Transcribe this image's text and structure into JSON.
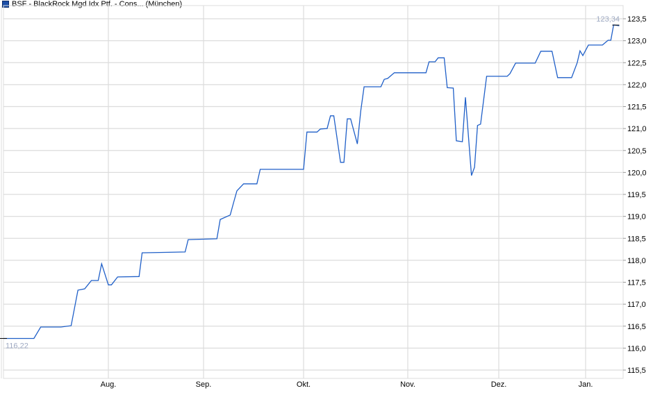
{
  "chart_data": {
    "type": "line",
    "title": "BSF - BlackRock Mgd Idx Ptf. - Cons... (München)",
    "legend_color": "#1c4fa8",
    "line_color": "#1f5fc8",
    "grid": true,
    "ylim": [
      115.5,
      123.5
    ],
    "y_ticks": [
      "115,5",
      "116,0",
      "116,5",
      "117,0",
      "117,5",
      "118,0",
      "118,5",
      "119,0",
      "119,5",
      "120,0",
      "120,5",
      "121,0",
      "121,5",
      "122,0",
      "122,5",
      "123,0",
      "123,5"
    ],
    "x_ticks": [
      "Aug.",
      "Sep.",
      "Okt.",
      "Nov.",
      "Dez.",
      "Jan."
    ],
    "start_label": "116,22",
    "end_label": "123,34",
    "points": [
      [
        "07-01",
        116.22
      ],
      [
        "07-10",
        116.22
      ],
      [
        "07-12",
        116.48
      ],
      [
        "07-18",
        116.48
      ],
      [
        "07-21",
        116.51
      ],
      [
        "07-23",
        117.32
      ],
      [
        "07-25",
        117.35
      ],
      [
        "07-27",
        117.54
      ],
      [
        "07-29",
        117.54
      ],
      [
        "07-30",
        117.92
      ],
      [
        "08-01",
        117.44
      ],
      [
        "08-02",
        117.44
      ],
      [
        "08-04",
        117.62
      ],
      [
        "08-11",
        117.63
      ],
      [
        "08-12",
        118.17
      ],
      [
        "08-26",
        118.19
      ],
      [
        "08-27",
        118.47
      ],
      [
        "09-05",
        118.49
      ],
      [
        "09-06",
        118.93
      ],
      [
        "09-09",
        119.03
      ],
      [
        "09-10",
        119.31
      ],
      [
        "09-11",
        119.58
      ],
      [
        "09-13",
        119.74
      ],
      [
        "09-17",
        119.74
      ],
      [
        "09-18",
        120.07
      ],
      [
        "10-01",
        120.07
      ],
      [
        "10-02",
        120.92
      ],
      [
        "10-05",
        120.92
      ],
      [
        "10-06",
        120.99
      ],
      [
        "10-08",
        121.0
      ],
      [
        "10-09",
        121.29
      ],
      [
        "10-10",
        121.29
      ],
      [
        "10-12",
        120.23
      ],
      [
        "10-13",
        120.23
      ],
      [
        "10-14",
        121.22
      ],
      [
        "10-15",
        121.22
      ],
      [
        "10-17",
        120.65
      ],
      [
        "10-18",
        121.4
      ],
      [
        "10-19",
        121.95
      ],
      [
        "10-24",
        121.95
      ],
      [
        "10-25",
        122.12
      ],
      [
        "10-26",
        122.14
      ],
      [
        "10-28",
        122.27
      ],
      [
        "11-07",
        122.27
      ],
      [
        "11-08",
        122.52
      ],
      [
        "11-10",
        122.52
      ],
      [
        "11-11",
        122.61
      ],
      [
        "11-13",
        122.61
      ],
      [
        "11-14",
        121.93
      ],
      [
        "11-16",
        121.92
      ],
      [
        "11-17",
        120.72
      ],
      [
        "11-19",
        120.7
      ],
      [
        "11-20",
        121.71
      ],
      [
        "11-22",
        119.93
      ],
      [
        "11-23",
        120.12
      ],
      [
        "11-24",
        121.07
      ],
      [
        "11-25",
        121.1
      ],
      [
        "11-27",
        122.19
      ],
      [
        "12-04",
        122.19
      ],
      [
        "12-05",
        122.25
      ],
      [
        "12-07",
        122.49
      ],
      [
        "12-14",
        122.49
      ],
      [
        "12-16",
        122.76
      ],
      [
        "12-20",
        122.76
      ],
      [
        "12-22",
        122.16
      ],
      [
        "12-27",
        122.16
      ],
      [
        "12-29",
        122.5
      ],
      [
        "12-30",
        122.77
      ],
      [
        "12-31",
        122.66
      ],
      [
        "01-02",
        122.9
      ],
      [
        "01-07",
        122.9
      ],
      [
        "01-09",
        123.01
      ],
      [
        "01-10",
        123.01
      ],
      [
        "01-11",
        123.36
      ],
      [
        "01-13",
        123.34
      ]
    ]
  }
}
